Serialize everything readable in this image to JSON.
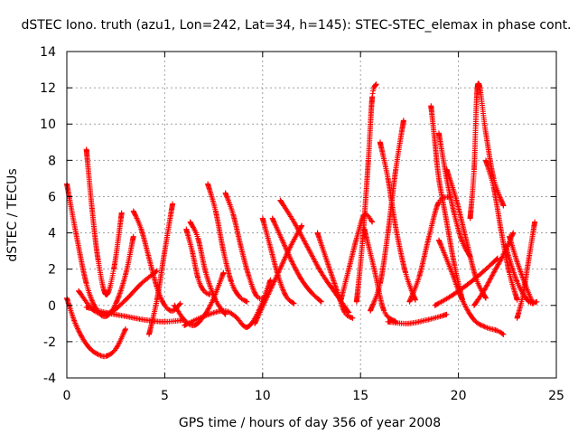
{
  "chart_data": {
    "type": "scatter",
    "title": "dSTEC Iono. truth (azu1, Lon=242, Lat=34, h=145): STEC-STEC_elemax in phase cont.",
    "xlabel": "GPS time / hours of day 356 of year 2008",
    "ylabel": "dSTEC  / TECUs",
    "xlim": [
      0,
      25
    ],
    "ylim": [
      -4,
      14
    ],
    "xticks": [
      0,
      5,
      10,
      15,
      20,
      25
    ],
    "yticks": [
      -4,
      -2,
      0,
      2,
      4,
      6,
      8,
      10,
      12,
      14
    ],
    "xtick_labels": [
      "0",
      "5",
      "10",
      "15",
      "20",
      "25"
    ],
    "ytick_labels": [
      "-4",
      "-2",
      "0",
      "2",
      "4",
      "6",
      "8",
      "10",
      "12",
      "14"
    ],
    "grid": true,
    "legend": "none",
    "marker": "+",
    "color": "#ff0000",
    "series": [
      {
        "x": [
          0.0,
          0.5,
          1.0,
          1.5,
          2.0,
          2.5,
          3.0,
          3.4
        ],
        "values": [
          6.7,
          3.8,
          1.2,
          -0.2,
          -0.6,
          0.1,
          1.7,
          3.8
        ]
      },
      {
        "x": [
          0.0,
          0.4,
          0.8,
          1.2,
          1.6,
          2.0,
          2.5,
          3.0
        ],
        "values": [
          0.4,
          -0.9,
          -1.8,
          -2.4,
          -2.7,
          -2.8,
          -2.4,
          -1.3
        ]
      },
      {
        "x": [
          1.0,
          1.3,
          1.6,
          2.0,
          2.4,
          2.8
        ],
        "values": [
          8.6,
          5.2,
          2.5,
          0.6,
          2.0,
          5.1
        ]
      },
      {
        "x": [
          0.6,
          1.4,
          2.2,
          3.0,
          3.8,
          4.6
        ],
        "values": [
          0.8,
          -0.3,
          -0.4,
          0.3,
          1.2,
          1.9
        ]
      },
      {
        "x": [
          3.4,
          3.8,
          4.2,
          4.6,
          5.0,
          5.4,
          5.8
        ],
        "values": [
          5.2,
          4.2,
          2.6,
          1.0,
          0.0,
          -0.3,
          0.1
        ]
      },
      {
        "x": [
          4.2,
          4.6,
          5.0,
          5.4
        ],
        "values": [
          -1.6,
          0.3,
          3.0,
          5.6
        ]
      },
      {
        "x": [
          1.0,
          2.0,
          3.0,
          4.0,
          5.0,
          6.0
        ],
        "values": [
          -0.1,
          -0.4,
          -0.6,
          -0.8,
          -0.9,
          -0.8
        ]
      },
      {
        "x": [
          5.5,
          6.0,
          6.5,
          7.0,
          7.5,
          8.0
        ],
        "values": [
          0.0,
          -0.8,
          -1.1,
          -0.6,
          0.4,
          1.8
        ]
      },
      {
        "x": [
          6.1,
          6.4,
          6.7,
          7.0,
          7.3
        ],
        "values": [
          4.2,
          3.0,
          1.5,
          0.8,
          0.6
        ]
      },
      {
        "x": [
          6.3,
          6.7,
          7.1,
          7.6,
          8.1
        ],
        "values": [
          4.6,
          3.7,
          1.8,
          0.3,
          -0.5
        ]
      },
      {
        "x": [
          7.2,
          7.6,
          8.0,
          8.4,
          8.8,
          9.2
        ],
        "values": [
          6.7,
          5.2,
          3.0,
          1.3,
          0.5,
          0.2
        ]
      },
      {
        "x": [
          8.1,
          8.5,
          8.9,
          9.3,
          9.7,
          10.1
        ],
        "values": [
          6.2,
          5.0,
          3.2,
          1.6,
          0.5,
          0.4
        ]
      },
      {
        "x": [
          6.0,
          7.0,
          8.0,
          8.6,
          9.2,
          9.8,
          10.4
        ],
        "values": [
          -1.1,
          -0.6,
          -0.3,
          -0.6,
          -1.2,
          -0.3,
          1.4
        ]
      },
      {
        "x": [
          9.6,
          10.2,
          10.8,
          11.4,
          12.0
        ],
        "values": [
          -1.0,
          0.4,
          1.8,
          3.2,
          4.4
        ]
      },
      {
        "x": [
          10.0,
          10.4,
          10.8,
          11.2,
          11.6
        ],
        "values": [
          4.8,
          3.2,
          1.6,
          0.5,
          0.1
        ]
      },
      {
        "x": [
          10.5,
          11.0,
          11.5,
          12.0,
          12.5,
          13.0
        ],
        "values": [
          4.8,
          3.6,
          2.4,
          1.4,
          0.7,
          0.2
        ]
      },
      {
        "x": [
          10.9,
          11.6,
          12.3,
          13.0,
          13.7,
          14.4
        ],
        "values": [
          5.8,
          4.6,
          3.2,
          1.8,
          0.7,
          -0.4
        ]
      },
      {
        "x": [
          12.8,
          13.3,
          13.8,
          14.2,
          14.6
        ],
        "values": [
          4.0,
          2.4,
          0.8,
          -0.4,
          -0.7
        ]
      },
      {
        "x": [
          14.0,
          14.4,
          14.8,
          15.2,
          15.6
        ],
        "values": [
          0.3,
          2.0,
          3.7,
          5.0,
          4.6
        ]
      },
      {
        "x": [
          14.8,
          15.1,
          15.4,
          15.6,
          15.8
        ],
        "values": [
          0.2,
          3.5,
          8.0,
          11.5,
          12.2
        ]
      },
      {
        "x": [
          15.2,
          15.7,
          16.2,
          16.8
        ],
        "values": [
          4.2,
          2.0,
          -0.3,
          -0.9
        ]
      },
      {
        "x": [
          15.5,
          16.0,
          16.4,
          16.8,
          17.2
        ],
        "values": [
          -0.3,
          1.2,
          4.0,
          7.5,
          10.2
        ]
      },
      {
        "x": [
          16.0,
          16.4,
          16.8,
          17.3,
          17.8
        ],
        "values": [
          9.0,
          7.0,
          4.3,
          1.8,
          0.3
        ]
      },
      {
        "x": [
          16.4,
          17.4,
          18.4,
          19.4
        ],
        "values": [
          -0.9,
          -1.0,
          -0.8,
          -0.5
        ]
      },
      {
        "x": [
          17.5,
          18.0,
          18.5,
          19.0,
          19.6
        ],
        "values": [
          0.2,
          1.6,
          3.8,
          5.7,
          6.0
        ]
      },
      {
        "x": [
          18.6,
          18.8,
          19.0,
          19.4,
          19.8,
          20.2
        ],
        "values": [
          11.0,
          9.0,
          7.0,
          4.6,
          2.2,
          0.3
        ]
      },
      {
        "x": [
          19.0,
          19.4,
          19.8,
          20.2,
          20.6
        ],
        "values": [
          9.5,
          7.0,
          5.0,
          3.5,
          2.7
        ]
      },
      {
        "x": [
          19.4,
          19.9,
          20.4,
          20.9,
          21.4
        ],
        "values": [
          7.5,
          5.8,
          3.6,
          1.5,
          0.4
        ]
      },
      {
        "x": [
          18.8,
          19.6,
          20.4,
          21.2,
          22.0
        ],
        "values": [
          0.0,
          0.5,
          1.1,
          1.8,
          2.6
        ]
      },
      {
        "x": [
          19.0,
          19.6,
          20.2,
          20.8,
          21.4,
          22.0,
          22.3
        ],
        "values": [
          3.6,
          2.0,
          0.3,
          -0.8,
          -1.2,
          -1.4,
          -1.6
        ]
      },
      {
        "x": [
          20.6,
          20.8,
          21.0,
          21.4,
          21.8,
          22.3
        ],
        "values": [
          4.8,
          7.5,
          12.2,
          9.5,
          7.0,
          5.5
        ]
      },
      {
        "x": [
          21.4,
          21.8,
          22.2,
          22.6,
          23.0
        ],
        "values": [
          8.0,
          6.5,
          4.0,
          1.8,
          0.3
        ]
      },
      {
        "x": [
          20.8,
          21.3,
          21.8,
          22.3,
          22.8
        ],
        "values": [
          0.0,
          0.8,
          1.8,
          2.8,
          4.0
        ]
      },
      {
        "x": [
          22.6,
          23.0,
          23.4,
          23.8
        ],
        "values": [
          3.8,
          2.4,
          1.2,
          0.1
        ]
      },
      {
        "x": [
          23.0,
          23.3,
          23.6,
          23.9
        ],
        "values": [
          -0.7,
          0.6,
          2.6,
          4.6
        ]
      },
      {
        "x": [
          22.4,
          23.0,
          23.6,
          24.0
        ],
        "values": [
          3.3,
          1.3,
          0.2,
          0.2
        ]
      }
    ]
  }
}
